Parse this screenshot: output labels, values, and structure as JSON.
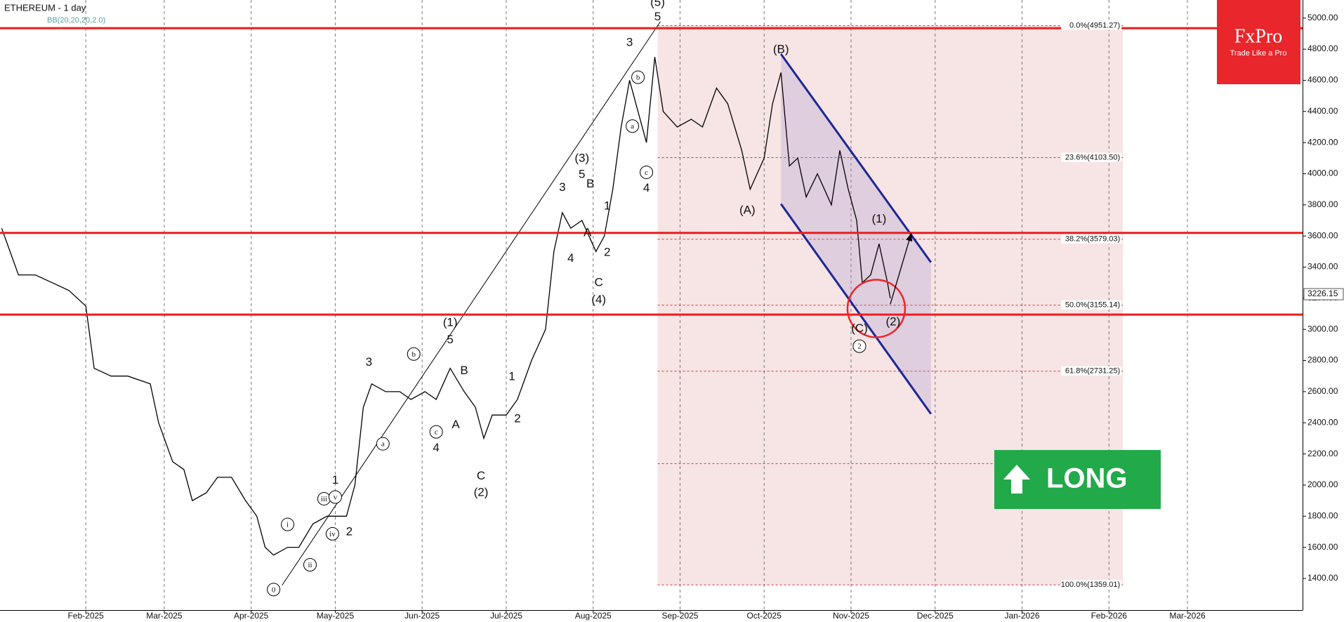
{
  "chart_data": {
    "type": "line",
    "title": "ETHEREUM - 1 day",
    "subtitle": "BB(20,20,20,2.0)",
    "color": "#000000",
    "x": [
      1,
      7,
      13,
      19,
      25,
      31,
      34,
      40,
      46,
      54,
      57,
      62,
      66,
      69,
      74,
      78,
      83,
      88,
      92,
      95,
      98,
      103,
      107,
      112,
      117,
      121,
      124,
      127,
      130,
      133,
      138,
      143,
      147,
      152,
      156,
      161,
      166,
      170,
      173,
      176,
      181,
      185,
      190,
      195,
      198,
      201,
      204,
      208,
      213,
      216,
      219,
      222,
      225,
      228,
      231,
      234,
      237,
      242,
      247,
      251,
      256,
      260,
      265,
      268,
      273,
      276,
      279,
      282,
      285,
      288,
      292,
      297,
      300,
      303,
      306,
      308,
      311,
      314,
      317,
      318
    ],
    "values": [
      3650,
      3350,
      3350,
      3300,
      3250,
      3150,
      2750,
      2700,
      2700,
      2650,
      2400,
      2150,
      2100,
      1900,
      1950,
      2050,
      2050,
      1900,
      1800,
      1600,
      1550,
      1600,
      1600,
      1750,
      1800,
      1800,
      1800,
      2000,
      2500,
      2650,
      2600,
      2600,
      2550,
      2600,
      2550,
      2750,
      2600,
      2500,
      2300,
      2450,
      2450,
      2550,
      2800,
      3000,
      3500,
      3750,
      3650,
      3700,
      3500,
      3600,
      3900,
      4300,
      4600,
      4400,
      4200,
      4750,
      4400,
      4300,
      4350,
      4300,
      4550,
      4450,
      4150,
      3900,
      4100,
      4450,
      4650,
      4050,
      4100,
      3850,
      4000,
      3800,
      4150,
      3900,
      3700,
      3300,
      3350,
      3550,
      3300,
      3200
    ],
    "xlim": [
      0.4,
      465.2
    ],
    "xticks": [
      {
        "value": 31,
        "label": "Feb-2025"
      },
      {
        "value": 59,
        "label": "Mar-2025"
      },
      {
        "value": 90,
        "label": "Apr-2025"
      },
      {
        "value": 120,
        "label": "May-2025"
      },
      {
        "value": 151,
        "label": "Jun-2025"
      },
      {
        "value": 181,
        "label": "Jul-2025"
      },
      {
        "value": 212,
        "label": "Aug-2025"
      },
      {
        "value": 243,
        "label": "Sep-2025"
      },
      {
        "value": 273,
        "label": "Oct-2025"
      },
      {
        "value": 304,
        "label": "Nov-2025"
      },
      {
        "value": 334,
        "label": "Dec-2025"
      },
      {
        "value": 365,
        "label": "Jan-2026"
      },
      {
        "value": 396,
        "label": "Feb-2026"
      },
      {
        "value": 424,
        "label": "Mar-2026"
      }
    ],
    "ylim": [
      1197,
      5116
    ],
    "yticks": [
      {
        "value": 1400,
        "label": "1400.00"
      },
      {
        "value": 1600,
        "label": "1600.00"
      },
      {
        "value": 1800,
        "label": "1800.00"
      },
      {
        "value": 2000,
        "label": "2000.00"
      },
      {
        "value": 2200,
        "label": "2200.00"
      },
      {
        "value": 2400,
        "label": "2400.00"
      },
      {
        "value": 2600,
        "label": "2600.00"
      },
      {
        "value": 2800,
        "label": "2800.00"
      },
      {
        "value": 3000,
        "label": "3000.00"
      },
      {
        "value": 3200,
        "label": "3200.00"
      },
      {
        "value": 3400,
        "label": "3400.00"
      },
      {
        "value": 3600,
        "label": "3600.00"
      },
      {
        "value": 3800,
        "label": "3800.00"
      },
      {
        "value": 4000,
        "label": "4000.00"
      },
      {
        "value": 4200,
        "label": "4200.00"
      },
      {
        "value": 4400,
        "label": "4400.00"
      },
      {
        "value": 4600,
        "label": "4600.00"
      },
      {
        "value": 4800,
        "label": "4800.00"
      },
      {
        "value": 5000,
        "label": "5000.00"
      }
    ],
    "grid": true,
    "levels": [
      {
        "value": 4935,
        "color": "#ee1c1c"
      },
      {
        "value": 3620,
        "color": "#ee1c1c"
      },
      {
        "value": 3095,
        "color": "#ee1c1c"
      }
    ],
    "fib_range": [
      235,
      401
    ],
    "fib": [
      {
        "value": 4951.27,
        "label": "0.0%(4951.27)"
      },
      {
        "value": 4103.5,
        "label": "23.6%(4103.50)"
      },
      {
        "value": 3579.03,
        "label": "38.2%(3579.03)"
      },
      {
        "value": 3155.14,
        "label": "50.0%(3155.14)"
      },
      {
        "value": 2731.25,
        "label": "61.8%(2731.25)"
      },
      {
        "value": 1359.01,
        "label": "100.0%(1359.01)"
      }
    ],
    "fib_extra": [
      2138
    ],
    "channel": {
      "color": "#1c2796",
      "upper": {
        "x": [
          279,
          332.5
        ],
        "y": [
          4769,
          3431
        ]
      },
      "lower": {
        "x": [
          279,
          332.5
        ],
        "y": [
          3806,
          2457
        ]
      }
    },
    "trendline": {
      "x": [
        101,
        236
      ],
      "y": [
        1356,
        4978
      ]
    },
    "arrow": {
      "x": [
        318,
        325.5
      ],
      "y": [
        3162,
        3618
      ]
    },
    "circle": {
      "x": 313,
      "y": 3134
    },
    "price_tag": 3226.15,
    "annotations": [
      {
        "text": "0",
        "x": 98,
        "y": 1329,
        "circled": true
      },
      {
        "text": "i",
        "x": 103,
        "y": 1747,
        "circled": true
      },
      {
        "text": "ii",
        "x": 111,
        "y": 1488,
        "circled": true
      },
      {
        "text": "iii",
        "x": 116,
        "y": 1912,
        "circled": true
      },
      {
        "text": "v",
        "x": 120,
        "y": 1923,
        "circled": true
      },
      {
        "text": "1",
        "x": 120,
        "y": 2028,
        "circled": false
      },
      {
        "text": "iv",
        "x": 119,
        "y": 1687,
        "circled": true
      },
      {
        "text": "2",
        "x": 125,
        "y": 1698,
        "circled": false
      },
      {
        "text": "3",
        "x": 132,
        "y": 2787,
        "circled": false
      },
      {
        "text": "a",
        "x": 137,
        "y": 2265,
        "circled": true
      },
      {
        "text": "b",
        "x": 148,
        "y": 2842,
        "circled": true
      },
      {
        "text": "c",
        "x": 156,
        "y": 2342,
        "circled": true
      },
      {
        "text": "4",
        "x": 156,
        "y": 2237,
        "circled": false
      },
      {
        "text": "(1)",
        "x": 161,
        "y": 3041,
        "circled": false
      },
      {
        "text": "5",
        "x": 161,
        "y": 2930,
        "circled": false
      },
      {
        "text": "B",
        "x": 166,
        "y": 2732,
        "circled": false
      },
      {
        "text": "A",
        "x": 163,
        "y": 2386,
        "circled": false
      },
      {
        "text": "C",
        "x": 172,
        "y": 2055,
        "circled": false
      },
      {
        "text": "(2)",
        "x": 172,
        "y": 1951,
        "circled": false
      },
      {
        "text": "1",
        "x": 183,
        "y": 2694,
        "circled": false
      },
      {
        "text": "2",
        "x": 185,
        "y": 2424,
        "circled": false
      },
      {
        "text": "3",
        "x": 201,
        "y": 3910,
        "circled": false
      },
      {
        "text": "(3)",
        "x": 208,
        "y": 4097,
        "circled": false
      },
      {
        "text": "5",
        "x": 208,
        "y": 3993,
        "circled": false
      },
      {
        "text": "B",
        "x": 211,
        "y": 3932,
        "circled": false
      },
      {
        "text": "A",
        "x": 210,
        "y": 3619,
        "circled": false
      },
      {
        "text": "1",
        "x": 217,
        "y": 3789,
        "circled": false
      },
      {
        "text": "2",
        "x": 217,
        "y": 3492,
        "circled": false
      },
      {
        "text": "4",
        "x": 204,
        "y": 3453,
        "circled": false
      },
      {
        "text": "C",
        "x": 214,
        "y": 3299,
        "circled": false
      },
      {
        "text": "(4)",
        "x": 214,
        "y": 3189,
        "circled": false
      },
      {
        "text": "3",
        "x": 225,
        "y": 4840,
        "circled": false
      },
      {
        "text": "b",
        "x": 228,
        "y": 4620,
        "circled": true
      },
      {
        "text": "a",
        "x": 226,
        "y": 4306,
        "circled": true
      },
      {
        "text": "c",
        "x": 231,
        "y": 4009,
        "circled": true
      },
      {
        "text": "4",
        "x": 231,
        "y": 3905,
        "circled": false
      },
      {
        "text": "(5)",
        "x": 235,
        "y": 5099,
        "circled": false
      },
      {
        "text": "5",
        "x": 235,
        "y": 5005,
        "circled": false
      },
      {
        "text": "(B)",
        "x": 279,
        "y": 4796,
        "circled": false
      },
      {
        "text": "(A)",
        "x": 267,
        "y": 3762,
        "circled": false
      },
      {
        "text": "(1)",
        "x": 314,
        "y": 3707,
        "circled": false
      },
      {
        "text": "(C)",
        "x": 307,
        "y": 3002,
        "circled": false
      },
      {
        "text": "2",
        "x": 307,
        "y": 2892,
        "circled": true
      },
      {
        "text": "(2)",
        "x": 319,
        "y": 3046,
        "circled": false
      }
    ],
    "brand": {
      "name": "FxPro",
      "tagline": "Trade Like a Pro"
    },
    "signal": "LONG"
  }
}
